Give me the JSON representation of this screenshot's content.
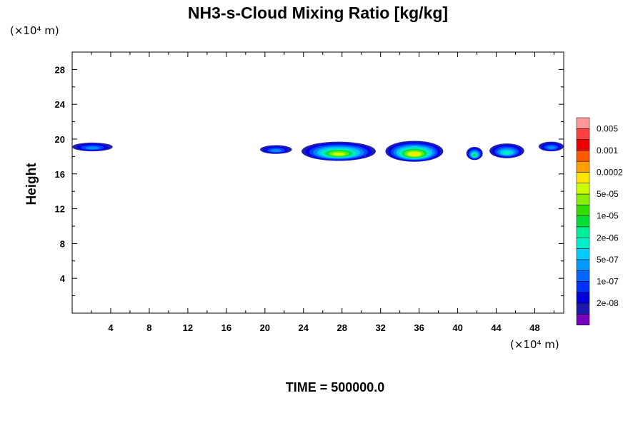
{
  "chart_data": {
    "type": "contour",
    "title": "NH3-s-Cloud Mixing Ratio [kg/kg]",
    "ylabel": "Height",
    "x_unit": "(×10⁴ m)",
    "y_unit": "(×10⁴ m)",
    "xlim": [
      0,
      51
    ],
    "ylim": [
      0,
      30
    ],
    "x_ticks": [
      4,
      8,
      12,
      16,
      20,
      24,
      28,
      32,
      36,
      40,
      44,
      48
    ],
    "y_ticks": [
      4,
      8,
      12,
      16,
      20,
      24,
      28
    ],
    "footer": "TIME = 500000.0",
    "colorbar": {
      "labels": [
        "0.005",
        "0.001",
        "0.0002",
        "5e-05",
        "1e-05",
        "2e-06",
        "5e-07",
        "1e-07",
        "2e-08"
      ],
      "colors_top_to_bottom": [
        "#ff9999",
        "#ff4040",
        "#ee0000",
        "#ff5a00",
        "#ffa000",
        "#ffe600",
        "#ccff00",
        "#88ee00",
        "#33dd00",
        "#00dd33",
        "#00ee99",
        "#00eecc",
        "#00ccff",
        "#0099ff",
        "#0066ff",
        "#0033ff",
        "#0000dd",
        "#1a1aaa",
        "#7700bb"
      ]
    },
    "cloud_features": [
      {
        "x_range": [
          0,
          4.2
        ],
        "y_range": [
          18.6,
          19.6
        ],
        "max_level": "1e-07"
      },
      {
        "x_range": [
          19.5,
          22.8
        ],
        "y_range": [
          18.3,
          19.3
        ],
        "max_level": "1e-07"
      },
      {
        "x_range": [
          23.8,
          31.5
        ],
        "y_range": [
          17.5,
          19.7
        ],
        "max_level": "5e-05"
      },
      {
        "x_range": [
          32.5,
          38.5
        ],
        "y_range": [
          17.4,
          19.8
        ],
        "max_level": "0.0002"
      },
      {
        "x_range": [
          40.9,
          42.6
        ],
        "y_range": [
          17.6,
          19.1
        ],
        "max_level": "1e-05"
      },
      {
        "x_range": [
          43.3,
          46.9
        ],
        "y_range": [
          17.8,
          19.5
        ],
        "max_level": "2e-06"
      },
      {
        "x_range": [
          48.4,
          51
        ],
        "y_range": [
          18.6,
          19.7
        ],
        "max_level": "1e-07"
      }
    ]
  }
}
